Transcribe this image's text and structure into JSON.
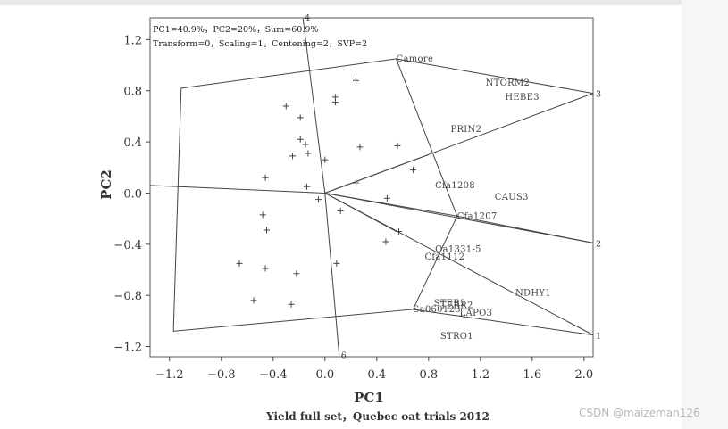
{
  "chart_data": {
    "type": "scatter",
    "xlabel": "PC1",
    "ylabel": "PC2",
    "caption": "Yield full set，Quebec oat trials 2012",
    "header_line1": "PC1=40.9%，PC2=20%，Sum=60.9%",
    "header_line2": "Transform=0，Scaling=1，Centening=2，SVP=2",
    "xlim": [
      -1.35,
      2.07
    ],
    "ylim": [
      -1.28,
      1.37
    ],
    "x_ticks": [
      -1.2,
      -0.8,
      -0.4,
      0.0,
      0.4,
      0.8,
      1.2,
      1.6,
      2.0
    ],
    "x_tick_labels": [
      "−1.2",
      "−0.8",
      "−0.4",
      "0.0",
      "0.4",
      "0.8",
      "1.2",
      "1.6",
      "2.0"
    ],
    "y_ticks": [
      1.2,
      0.8,
      0.4,
      0.0,
      -0.4,
      -0.8,
      -1.2
    ],
    "y_tick_labels": [
      "1.2",
      "0.8",
      "0.4",
      "0.0",
      "−0.4",
      "−0.8",
      "−1.2"
    ],
    "origin": [
      0.0,
      0.0
    ],
    "environments": [
      {
        "label": "1",
        "x": 2.07,
        "y": -1.11
      },
      {
        "label": "2",
        "x": 2.07,
        "y": -0.39
      },
      {
        "label": "3",
        "x": 2.07,
        "y": 0.78
      },
      {
        "label": "4",
        "x": -0.17,
        "y": 1.37
      },
      {
        "label": "6",
        "x": 0.11,
        "y": -1.27
      },
      {
        "label": "",
        "x": -1.35,
        "y": 0.06
      }
    ],
    "hull": [
      [
        -1.11,
        0.82
      ],
      [
        0.55,
        1.05
      ],
      [
        1.02,
        -0.18
      ],
      [
        0.68,
        -0.91
      ],
      [
        -1.17,
        -1.08
      ]
    ],
    "hull_edge_lines": [
      {
        "from": [
          0.55,
          1.05
        ],
        "to": [
          2.07,
          0.78
        ]
      },
      {
        "from": [
          1.02,
          -0.18
        ],
        "to": [
          2.07,
          -0.39
        ]
      },
      {
        "from": [
          0.68,
          -0.91
        ],
        "to": [
          2.07,
          -1.11
        ]
      }
    ],
    "sector_lines": [
      {
        "from": [
          0.0,
          0.0
        ],
        "to": [
          0.8,
          0.3
        ]
      },
      {
        "from": [
          0.0,
          0.0
        ],
        "to": [
          1.02,
          -0.18
        ]
      },
      {
        "from": [
          0.0,
          0.0
        ],
        "to": [
          0.55,
          -0.3
        ]
      }
    ],
    "genotypes": [
      {
        "label": "Camore",
        "x": 0.55,
        "y": 1.05
      },
      {
        "label": "NTORM2",
        "x": 1.24,
        "y": 0.86
      },
      {
        "label": "HEBE3",
        "x": 1.39,
        "y": 0.75
      },
      {
        "label": "PRIN2",
        "x": 0.97,
        "y": 0.5
      },
      {
        "label": "Cfa1208",
        "x": 0.85,
        "y": 0.06
      },
      {
        "label": "CAUS3",
        "x": 1.31,
        "y": -0.03
      },
      {
        "label": "Cfa1207",
        "x": 1.02,
        "y": -0.18
      },
      {
        "label": "Oa1331-5",
        "x": 0.85,
        "y": -0.44
      },
      {
        "label": "Cfa1112",
        "x": 0.77,
        "y": -0.5
      },
      {
        "label": "NDHY1",
        "x": 1.47,
        "y": -0.78
      },
      {
        "label": "STER2",
        "x": 0.84,
        "y": -0.86
      },
      {
        "label": "TERR2",
        "x": 0.89,
        "y": -0.88
      },
      {
        "label": "Sa060123",
        "x": 0.68,
        "y": -0.91
      },
      {
        "label": "LAPO3",
        "x": 1.04,
        "y": -0.94
      },
      {
        "label": "STRO1",
        "x": 0.89,
        "y": -1.12
      }
    ],
    "unlabeled_points": [
      {
        "x": 0.24,
        "y": 0.88
      },
      {
        "x": -0.3,
        "y": 0.68
      },
      {
        "x": 0.08,
        "y": 0.75
      },
      {
        "x": 0.08,
        "y": 0.71
      },
      {
        "x": -0.19,
        "y": 0.59
      },
      {
        "x": -0.19,
        "y": 0.42
      },
      {
        "x": -0.15,
        "y": 0.38
      },
      {
        "x": -0.13,
        "y": 0.31
      },
      {
        "x": -0.25,
        "y": 0.29
      },
      {
        "x": 0.27,
        "y": 0.36
      },
      {
        "x": 0.56,
        "y": 0.37
      },
      {
        "x": 0.0,
        "y": 0.26
      },
      {
        "x": 0.68,
        "y": 0.18
      },
      {
        "x": -0.46,
        "y": 0.12
      },
      {
        "x": -0.14,
        "y": 0.05
      },
      {
        "x": 0.24,
        "y": 0.08
      },
      {
        "x": 0.48,
        "y": -0.04
      },
      {
        "x": -0.05,
        "y": -0.05
      },
      {
        "x": 0.12,
        "y": -0.14
      },
      {
        "x": -0.48,
        "y": -0.17
      },
      {
        "x": -0.45,
        "y": -0.29
      },
      {
        "x": 0.47,
        "y": -0.38
      },
      {
        "x": 0.57,
        "y": -0.3
      },
      {
        "x": -0.66,
        "y": -0.55
      },
      {
        "x": 0.09,
        "y": -0.55
      },
      {
        "x": -0.46,
        "y": -0.59
      },
      {
        "x": -0.22,
        "y": -0.63
      },
      {
        "x": -0.55,
        "y": -0.84
      },
      {
        "x": -0.26,
        "y": -0.87
      }
    ]
  },
  "watermark": "CSDN @maizeman126"
}
